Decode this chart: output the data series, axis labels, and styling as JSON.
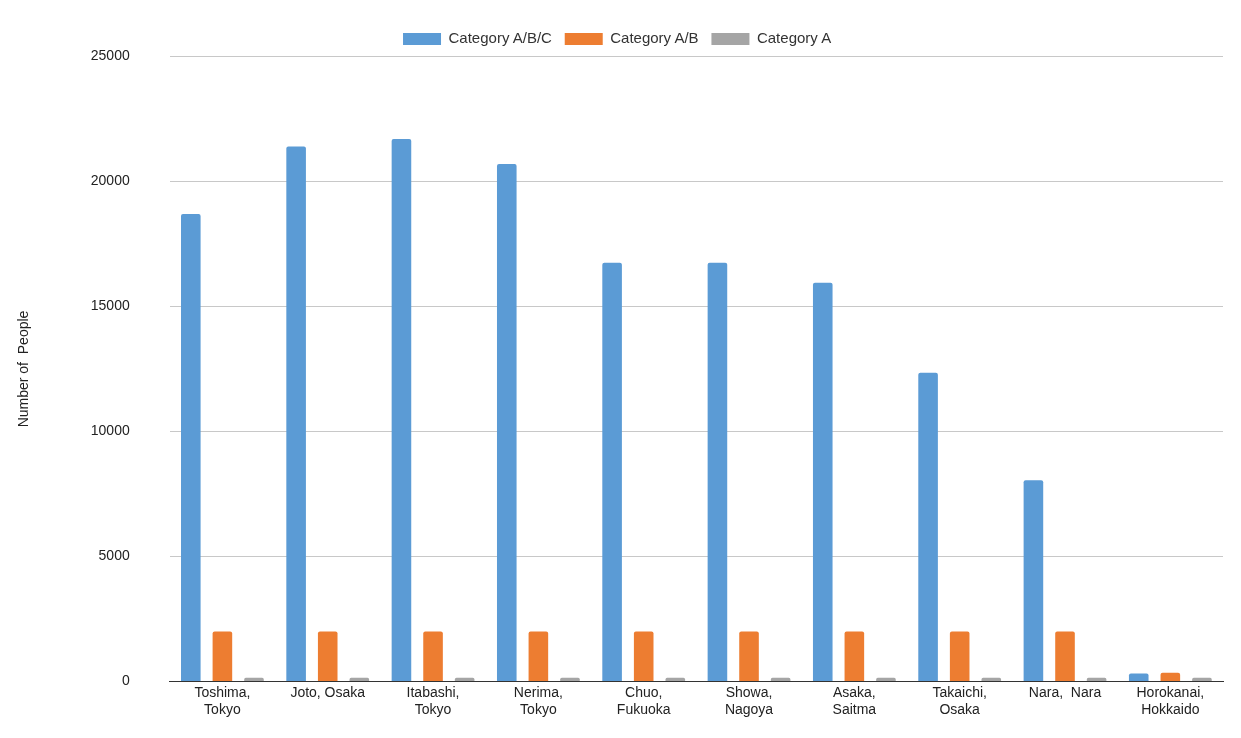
{
  "chart_data": {
    "type": "bar",
    "ylabel": "Number of  People",
    "categories": [
      "Toshima, Tokyo",
      "Joto, Osaka",
      "Itabashi, Tokyo",
      "Nerima, Tokyo",
      "Chuo, Fukuoka",
      "Showa, Nagoya",
      "Asaka, Saitma",
      "Takaichi, Osaka",
      "Nara,  Nara",
      "Horokanai, Hokkaido"
    ],
    "series": [
      {
        "name": "Category A/B/C",
        "color": "#5b9bd5",
        "values": [
          18700,
          21400,
          21700,
          20700,
          16750,
          16750,
          15950,
          12350,
          8050,
          320
        ]
      },
      {
        "name": "Category A/B",
        "color": "#ed7d31",
        "values": [
          2000,
          2000,
          2000,
          2000,
          2000,
          2000,
          2000,
          2000,
          2000,
          350
        ]
      },
      {
        "name": "Category A",
        "color": "#a5a5a5",
        "values": [
          150,
          150,
          150,
          150,
          150,
          150,
          150,
          150,
          150,
          150
        ]
      }
    ],
    "ylim": [
      0,
      25000
    ],
    "yticks": [
      0,
      5000,
      10000,
      15000,
      20000,
      25000
    ],
    "grid": "y",
    "legend": "top"
  }
}
